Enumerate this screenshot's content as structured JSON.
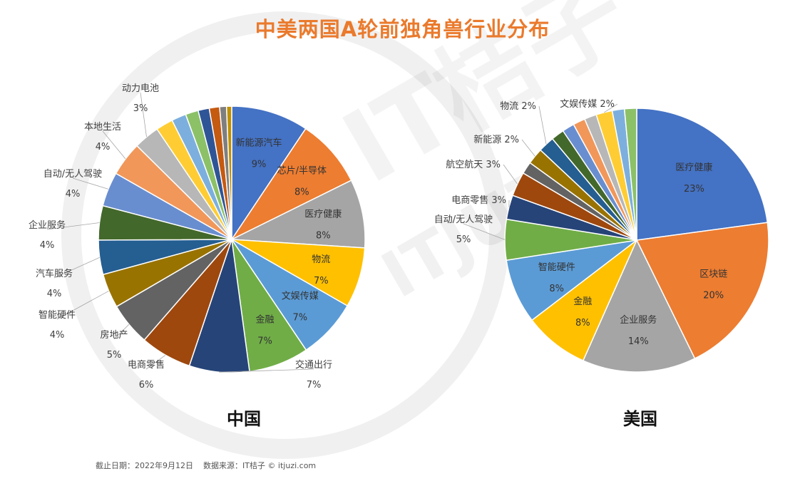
{
  "title": "中美两国A轮前独角兽行业分布",
  "footer": "截止日期：2022年9月12日    数据来源：IT桔子 © itjuzi.com",
  "watermark": {
    "text": "ITJUZI",
    "logo_text": "IT桔子"
  },
  "chart_data": [
    {
      "type": "pie",
      "caption": "中国",
      "slices": [
        {
          "label": "新能源汽车",
          "value": 9,
          "value_label": "9%",
          "color": "#4472c4",
          "label_position": "inside"
        },
        {
          "label": "芯片/半导体",
          "value": 8,
          "value_label": "8%",
          "color": "#ed7d31",
          "label_position": "inside"
        },
        {
          "label": "医疗健康",
          "value": 8,
          "value_label": "8%",
          "color": "#a5a5a5",
          "label_position": "inside"
        },
        {
          "label": "物流",
          "value": 7,
          "value_label": "7%",
          "color": "#ffc000",
          "label_position": "inside"
        },
        {
          "label": "文娱传媒",
          "value": 7,
          "value_label": "7%",
          "color": "#5b9bd5",
          "label_position": "inside"
        },
        {
          "label": "金融",
          "value": 7,
          "value_label": "7%",
          "color": "#70ad47",
          "label_position": "inside"
        },
        {
          "label": "交通出行",
          "value": 7,
          "value_label": "7%",
          "color": "#264478",
          "label_position": "outside"
        },
        {
          "label": "电商零售",
          "value": 6,
          "value_label": "6%",
          "color": "#9e480e",
          "label_position": "outside"
        },
        {
          "label": "房地产",
          "value": 5,
          "value_label": "5%",
          "color": "#636363",
          "label_position": "outside"
        },
        {
          "label": "智能硬件",
          "value": 4,
          "value_label": "4%",
          "color": "#997300",
          "label_position": "outside"
        },
        {
          "label": "汽车服务",
          "value": 4,
          "value_label": "4%",
          "color": "#255e91",
          "label_position": "outside"
        },
        {
          "label": "企业服务",
          "value": 4,
          "value_label": "4%",
          "color": "#43682b",
          "label_position": "outside"
        },
        {
          "label": "自动/无人驾驶",
          "value": 4,
          "value_label": "4%",
          "color": "#698ed0",
          "label_position": "outside"
        },
        {
          "label": "本地生活",
          "value": 4,
          "value_label": "4%",
          "color": "#f1975a",
          "label_position": "outside"
        },
        {
          "label": "动力电池",
          "value": 3,
          "value_label": "3%",
          "color": "#b7b7b7",
          "label_position": "outside"
        },
        {
          "label": "",
          "value": 2,
          "value_label": "",
          "color": "#ffcd33",
          "label_position": "none"
        },
        {
          "label": "",
          "value": 1.7,
          "value_label": "",
          "color": "#7cafdd",
          "label_position": "none"
        },
        {
          "label": "",
          "value": 1.5,
          "value_label": "",
          "color": "#8cc168",
          "label_position": "none"
        },
        {
          "label": "",
          "value": 1.3,
          "value_label": "",
          "color": "#2f5597",
          "label_position": "none"
        },
        {
          "label": "",
          "value": 1.2,
          "value_label": "",
          "color": "#c55a11",
          "label_position": "none"
        },
        {
          "label": "",
          "value": 0.8,
          "value_label": "",
          "color": "#7f7f7f",
          "label_position": "none"
        },
        {
          "label": "",
          "value": 0.6,
          "value_label": "",
          "color": "#bf9000",
          "label_position": "none"
        }
      ]
    },
    {
      "type": "pie",
      "caption": "美国",
      "slices": [
        {
          "label": "医疗健康",
          "value": 23,
          "value_label": "23%",
          "color": "#4472c4",
          "label_position": "inside"
        },
        {
          "label": "区块链",
          "value": 20,
          "value_label": "20%",
          "color": "#ed7d31",
          "label_position": "inside"
        },
        {
          "label": "企业服务",
          "value": 14,
          "value_label": "14%",
          "color": "#a5a5a5",
          "label_position": "inside"
        },
        {
          "label": "金融",
          "value": 8,
          "value_label": "8%",
          "color": "#ffc000",
          "label_position": "inside"
        },
        {
          "label": "智能硬件",
          "value": 8,
          "value_label": "8%",
          "color": "#5b9bd5",
          "label_position": "inside"
        },
        {
          "label": "自动/无人驾驶",
          "value": 5,
          "value_label": "5%",
          "color": "#70ad47",
          "label_position": "outside"
        },
        {
          "label": "电商零售",
          "value": 3,
          "value_label": "3%",
          "color": "#264478",
          "label_position": "outside"
        },
        {
          "label": "航空航天",
          "value": 3,
          "value_label": "3%",
          "color": "#9e480e",
          "label_position": "outside"
        },
        {
          "label": "",
          "value": 1.5,
          "value_label": "",
          "color": "#636363",
          "label_position": "none"
        },
        {
          "label": "新能源",
          "value": 2,
          "value_label": "2%",
          "color": "#997300",
          "label_position": "outside"
        },
        {
          "label": "物流",
          "value": 2,
          "value_label": "2%",
          "color": "#255e91",
          "label_position": "outside"
        },
        {
          "label": "",
          "value": 1.6,
          "value_label": "",
          "color": "#43682b",
          "label_position": "none"
        },
        {
          "label": "",
          "value": 1.5,
          "value_label": "",
          "color": "#698ed0",
          "label_position": "none"
        },
        {
          "label": "",
          "value": 1.5,
          "value_label": "",
          "color": "#f1975a",
          "label_position": "none"
        },
        {
          "label": "",
          "value": 1.5,
          "value_label": "",
          "color": "#b7b7b7",
          "label_position": "none"
        },
        {
          "label": "文娱传媒",
          "value": 2,
          "value_label": "2%",
          "color": "#ffcd33",
          "label_position": "outside"
        },
        {
          "label": "",
          "value": 1.5,
          "value_label": "",
          "color": "#7cafdd",
          "label_position": "none"
        },
        {
          "label": "",
          "value": 1.5,
          "value_label": "",
          "color": "#8cc168",
          "label_position": "none"
        }
      ]
    }
  ]
}
